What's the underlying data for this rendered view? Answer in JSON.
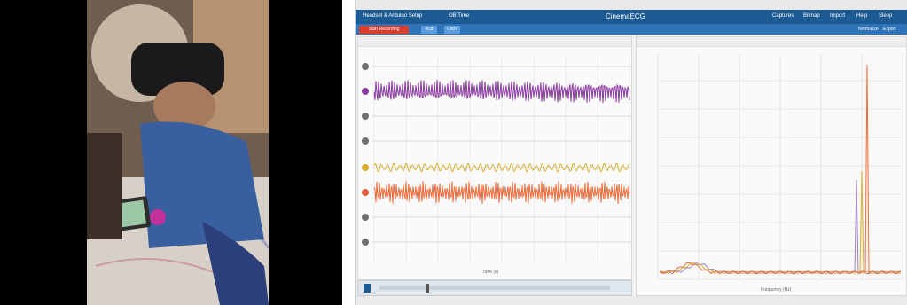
{
  "app": {
    "header_tabs": [
      "Headset & Arduino Setup",
      "OB Time"
    ],
    "brand": "CinemaECG",
    "menu": [
      "Captures",
      "Bitmap",
      "Import",
      "Help",
      "Sleep"
    ],
    "record_button": "Start Recording",
    "mini_buttons": [
      "Rcd",
      "Chns"
    ],
    "right_tools": [
      "Normalize",
      "Export"
    ]
  },
  "left_panel": {
    "channel_colors": [
      "#6e6e6e",
      "#8a3a9a",
      "#6e6e6e",
      "#6e6e6e",
      "#d9a92a",
      "#e8593b",
      "#6e6e6e",
      "#6e6e6e"
    ],
    "x_axis_label": "Time (s)"
  },
  "right_panel": {
    "x_axis_label": "Frequency (Hz)"
  },
  "colors": {
    "purple_signal": "#8a3aa0",
    "yellow_signal": "#d9b030",
    "orange_signal": "#ef6a3a",
    "header_blue": "#1c5a93",
    "record_red": "#d93e2f"
  }
}
